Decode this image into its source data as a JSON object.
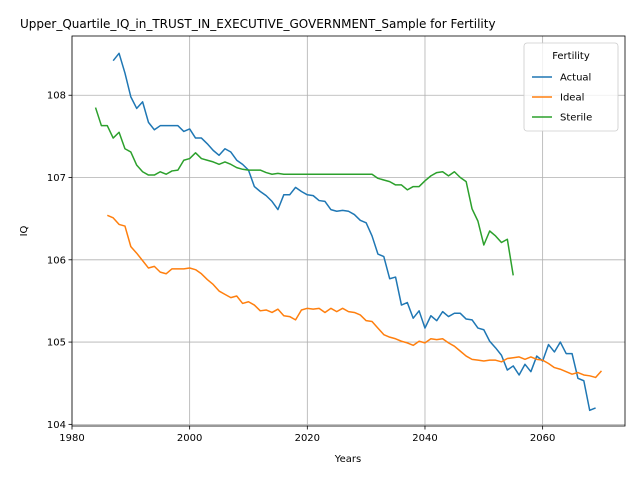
{
  "chart_data": {
    "type": "line",
    "title": "Upper_Quartile_IQ_in_TRUST_IN_EXECUTIVE_GOVERNMENT_Sample for Fertility",
    "xlabel": "Years",
    "ylabel": "IQ",
    "xlim": [
      1980,
      2074
    ],
    "ylim": [
      103.98,
      108.72
    ],
    "x_ticks": [
      1980,
      2000,
      2020,
      2040,
      2060
    ],
    "y_ticks": [
      104,
      105,
      106,
      107,
      108
    ],
    "grid": true,
    "legend": {
      "title": "Fertility",
      "position": "top-right"
    },
    "series": [
      {
        "name": "Actual",
        "color": "#1f77b4",
        "x": [
          1987,
          1988,
          1989,
          1990,
          1991,
          1992,
          1993,
          1994,
          1995,
          1996,
          1997,
          1998,
          1999,
          2000,
          2001,
          2002,
          2003,
          2004,
          2005,
          2006,
          2007,
          2008,
          2009,
          2010,
          2011,
          2012,
          2013,
          2014,
          2015,
          2016,
          2017,
          2018,
          2019,
          2020,
          2021,
          2022,
          2023,
          2024,
          2025,
          2026,
          2027,
          2028,
          2029,
          2030,
          2031,
          2032,
          2033,
          2034,
          2035,
          2036,
          2037,
          2038,
          2039,
          2040,
          2041,
          2042,
          2043,
          2044,
          2045,
          2046,
          2047,
          2048,
          2049,
          2050,
          2051,
          2052,
          2053,
          2054,
          2055,
          2056,
          2057,
          2058,
          2059,
          2060,
          2061,
          2062,
          2063,
          2064,
          2065,
          2066,
          2067,
          2068,
          2069,
          2070
        ],
        "y": [
          108.42,
          108.51,
          108.27,
          107.98,
          107.84,
          107.92,
          107.67,
          107.58,
          107.63,
          107.63,
          107.63,
          107.63,
          107.56,
          107.59,
          107.48,
          107.48,
          107.41,
          107.33,
          107.27,
          107.35,
          107.31,
          107.21,
          107.16,
          107.09,
          106.89,
          106.83,
          106.78,
          106.71,
          106.61,
          106.79,
          106.79,
          106.88,
          106.83,
          106.79,
          106.78,
          106.72,
          106.71,
          106.61,
          106.59,
          106.6,
          106.59,
          106.55,
          106.48,
          106.45,
          106.29,
          106.07,
          106.04,
          105.77,
          105.79,
          105.45,
          105.48,
          105.29,
          105.38,
          105.17,
          105.32,
          105.26,
          105.37,
          105.31,
          105.35,
          105.35,
          105.28,
          105.27,
          105.17,
          105.15,
          105.01,
          104.93,
          104.84,
          104.66,
          104.71,
          104.6,
          104.73,
          104.64,
          104.83,
          104.77,
          104.97,
          104.88,
          105.0,
          104.86,
          104.86,
          104.56,
          104.53,
          104.17,
          104.2,
          null
        ]
      },
      {
        "name": "Ideal",
        "color": "#ff7f0e",
        "x": [
          1986,
          1987,
          1988,
          1989,
          1990,
          1991,
          1992,
          1993,
          1994,
          1995,
          1996,
          1997,
          1998,
          1999,
          2000,
          2001,
          2002,
          2003,
          2004,
          2005,
          2006,
          2007,
          2008,
          2009,
          2010,
          2011,
          2012,
          2013,
          2014,
          2015,
          2016,
          2017,
          2018,
          2019,
          2020,
          2021,
          2022,
          2023,
          2024,
          2025,
          2026,
          2027,
          2028,
          2029,
          2030,
          2031,
          2032,
          2033,
          2034,
          2035,
          2036,
          2037,
          2038,
          2039,
          2040,
          2041,
          2042,
          2043,
          2044,
          2045,
          2046,
          2047,
          2048,
          2049,
          2050,
          2051,
          2052,
          2053,
          2054,
          2055,
          2056,
          2057,
          2058,
          2059,
          2060,
          2061,
          2062,
          2063,
          2064,
          2065,
          2066,
          2067,
          2068,
          2069,
          2070
        ],
        "y": [
          106.54,
          106.51,
          106.43,
          106.41,
          106.16,
          106.08,
          105.99,
          105.9,
          105.92,
          105.85,
          105.83,
          105.89,
          105.89,
          105.89,
          105.9,
          105.88,
          105.83,
          105.76,
          105.7,
          105.62,
          105.58,
          105.54,
          105.56,
          105.47,
          105.49,
          105.45,
          105.38,
          105.39,
          105.36,
          105.4,
          105.32,
          105.31,
          105.27,
          105.39,
          105.41,
          105.4,
          105.41,
          105.36,
          105.41,
          105.37,
          105.41,
          105.37,
          105.36,
          105.33,
          105.26,
          105.25,
          105.17,
          105.09,
          105.06,
          105.04,
          105.01,
          104.99,
          104.96,
          105.01,
          104.99,
          105.04,
          105.03,
          105.04,
          104.99,
          104.95,
          104.89,
          104.83,
          104.79,
          104.78,
          104.77,
          104.78,
          104.78,
          104.76,
          104.8,
          104.81,
          104.82,
          104.79,
          104.82,
          104.79,
          104.78,
          104.74,
          104.69,
          104.67,
          104.64,
          104.61,
          104.63,
          104.6,
          104.59,
          104.57,
          104.65
        ]
      },
      {
        "name": "Sterile",
        "color": "#2ca02c",
        "x": [
          1984,
          1985,
          1986,
          1987,
          1988,
          1989,
          1990,
          1991,
          1992,
          1993,
          1994,
          1995,
          1996,
          1997,
          1998,
          1999,
          2000,
          2001,
          2002,
          2003,
          2004,
          2005,
          2006,
          2007,
          2008,
          2009,
          2010,
          2011,
          2012,
          2013,
          2014,
          2015,
          2016,
          2017,
          2018,
          2019,
          2020,
          2021,
          2022,
          2023,
          2024,
          2025,
          2026,
          2027,
          2028,
          2029,
          2030,
          2031,
          2032,
          2033,
          2034,
          2035,
          2036,
          2037,
          2038,
          2039,
          2040,
          2041,
          2042,
          2043,
          2044,
          2045,
          2046,
          2047,
          2048,
          2049,
          2050,
          2051,
          2052,
          2053,
          2054,
          2055
        ],
        "y": [
          107.85,
          107.63,
          107.63,
          107.48,
          107.55,
          107.35,
          107.31,
          107.15,
          107.07,
          107.03,
          107.03,
          107.07,
          107.04,
          107.08,
          107.09,
          107.21,
          107.23,
          107.3,
          107.23,
          107.21,
          107.19,
          107.16,
          107.19,
          107.16,
          107.12,
          107.1,
          107.09,
          107.09,
          107.09,
          107.06,
          107.04,
          107.05,
          107.04,
          107.04,
          107.04,
          107.04,
          107.04,
          107.04,
          107.04,
          107.04,
          107.04,
          107.04,
          107.04,
          107.04,
          107.04,
          107.04,
          107.04,
          107.04,
          106.99,
          106.97,
          106.95,
          106.91,
          106.91,
          106.85,
          106.89,
          106.89,
          106.96,
          107.02,
          107.06,
          107.07,
          107.02,
          107.07,
          107.0,
          106.95,
          106.62,
          106.47,
          106.18,
          106.35,
          106.29,
          106.21,
          106.25,
          105.81
        ]
      }
    ]
  }
}
